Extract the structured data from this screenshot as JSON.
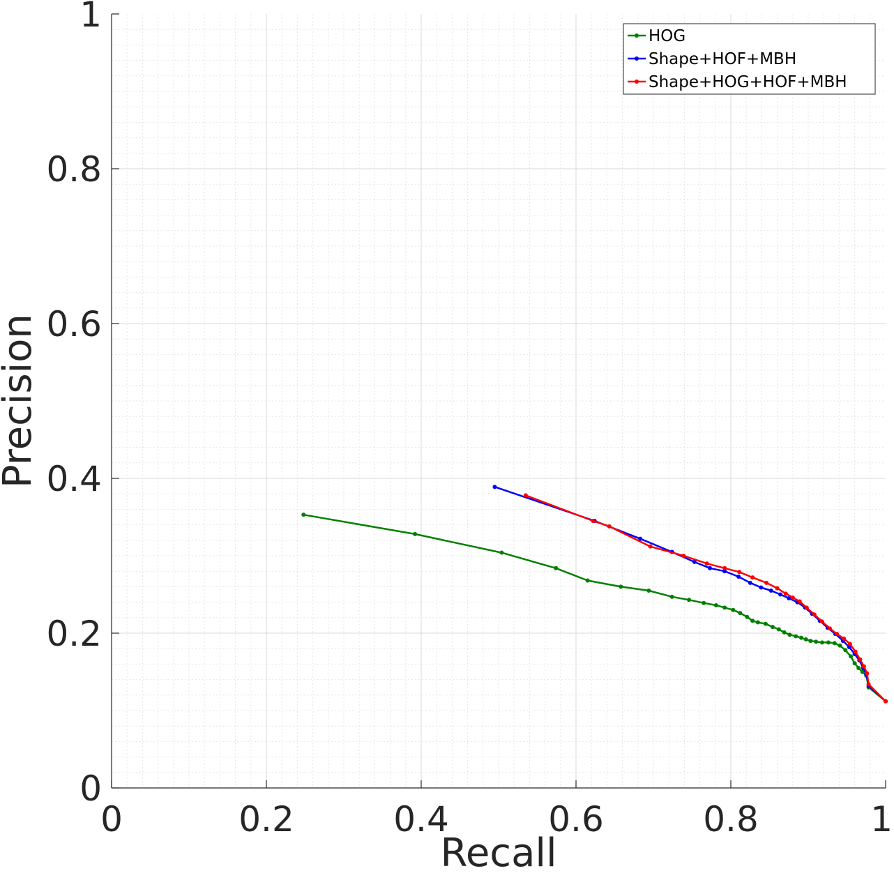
{
  "chart_data": {
    "type": "line",
    "xlabel": "Recall",
    "ylabel": "Precision",
    "xlim": [
      0,
      1
    ],
    "ylim": [
      0,
      1
    ],
    "xticks": [
      "0",
      "0.2",
      "0.4",
      "0.6",
      "0.8",
      "1"
    ],
    "yticks": [
      "0",
      "0.2",
      "0.4",
      "0.6",
      "0.8",
      "1"
    ],
    "grid": true,
    "minor_grid": true,
    "legend_position": "top-right",
    "series": [
      {
        "name": "HOG",
        "color": "#008000",
        "points": [
          [
            0.248,
            0.353
          ],
          [
            0.392,
            0.328
          ],
          [
            0.504,
            0.304
          ],
          [
            0.574,
            0.284
          ],
          [
            0.615,
            0.268
          ],
          [
            0.658,
            0.26
          ],
          [
            0.694,
            0.255
          ],
          [
            0.724,
            0.247
          ],
          [
            0.746,
            0.243
          ],
          [
            0.765,
            0.239
          ],
          [
            0.781,
            0.236
          ],
          [
            0.792,
            0.233
          ],
          [
            0.803,
            0.23
          ],
          [
            0.812,
            0.226
          ],
          [
            0.821,
            0.221
          ],
          [
            0.828,
            0.216
          ],
          [
            0.835,
            0.214
          ],
          [
            0.845,
            0.212
          ],
          [
            0.854,
            0.208
          ],
          [
            0.862,
            0.205
          ],
          [
            0.869,
            0.201
          ],
          [
            0.876,
            0.198
          ],
          [
            0.884,
            0.196
          ],
          [
            0.891,
            0.194
          ],
          [
            0.897,
            0.192
          ],
          [
            0.903,
            0.19
          ],
          [
            0.91,
            0.189
          ],
          [
            0.918,
            0.188
          ],
          [
            0.926,
            0.188
          ],
          [
            0.934,
            0.187
          ],
          [
            0.941,
            0.184
          ],
          [
            0.948,
            0.178
          ],
          [
            0.955,
            0.17
          ],
          [
            0.96,
            0.161
          ],
          [
            0.965,
            0.155
          ],
          [
            0.97,
            0.15
          ],
          [
            0.975,
            0.145
          ],
          [
            0.978,
            0.13
          ],
          [
            1.0,
            0.112
          ]
        ]
      },
      {
        "name": "Shape+HOF+MBH",
        "color": "#0000ff",
        "points": [
          [
            0.495,
            0.389
          ],
          [
            0.624,
            0.345
          ],
          [
            0.683,
            0.322
          ],
          [
            0.724,
            0.305
          ],
          [
            0.753,
            0.292
          ],
          [
            0.773,
            0.284
          ],
          [
            0.792,
            0.28
          ],
          [
            0.81,
            0.273
          ],
          [
            0.825,
            0.265
          ],
          [
            0.839,
            0.259
          ],
          [
            0.852,
            0.255
          ],
          [
            0.864,
            0.25
          ],
          [
            0.875,
            0.245
          ],
          [
            0.886,
            0.24
          ],
          [
            0.896,
            0.233
          ],
          [
            0.905,
            0.225
          ],
          [
            0.915,
            0.216
          ],
          [
            0.925,
            0.207
          ],
          [
            0.935,
            0.199
          ],
          [
            0.945,
            0.19
          ],
          [
            0.953,
            0.182
          ],
          [
            0.96,
            0.173
          ],
          [
            0.966,
            0.165
          ],
          [
            0.971,
            0.155
          ],
          [
            0.975,
            0.147
          ],
          [
            0.978,
            0.132
          ],
          [
            1.0,
            0.112
          ]
        ]
      },
      {
        "name": "Shape+HOG+HOF+MBH",
        "color": "#ff0000",
        "points": [
          [
            0.535,
            0.378
          ],
          [
            0.622,
            0.345
          ],
          [
            0.643,
            0.338
          ],
          [
            0.696,
            0.312
          ],
          [
            0.739,
            0.3
          ],
          [
            0.769,
            0.29
          ],
          [
            0.792,
            0.284
          ],
          [
            0.811,
            0.279
          ],
          [
            0.828,
            0.272
          ],
          [
            0.846,
            0.265
          ],
          [
            0.86,
            0.258
          ],
          [
            0.871,
            0.251
          ],
          [
            0.88,
            0.246
          ],
          [
            0.889,
            0.241
          ],
          [
            0.898,
            0.233
          ],
          [
            0.908,
            0.224
          ],
          [
            0.918,
            0.215
          ],
          [
            0.928,
            0.206
          ],
          [
            0.937,
            0.199
          ],
          [
            0.946,
            0.193
          ],
          [
            0.954,
            0.186
          ],
          [
            0.961,
            0.176
          ],
          [
            0.967,
            0.166
          ],
          [
            0.972,
            0.157
          ],
          [
            0.976,
            0.148
          ],
          [
            0.978,
            0.134
          ],
          [
            1.0,
            0.112
          ]
        ]
      }
    ]
  }
}
